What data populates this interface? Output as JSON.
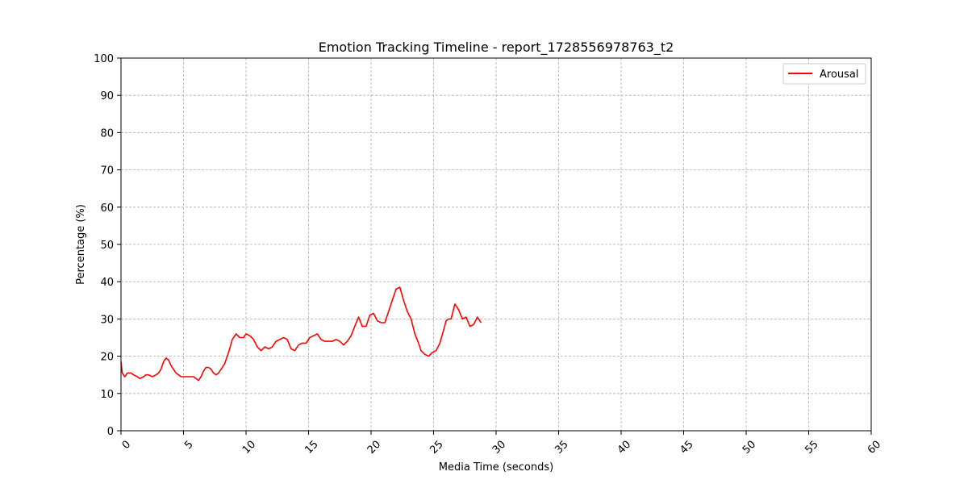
{
  "chart_data": {
    "type": "line",
    "title": "Emotion Tracking Timeline - report_1728556978763_t2",
    "xlabel": "Media Time (seconds)",
    "ylabel": "Percentage (%)",
    "xlim": [
      0,
      60
    ],
    "ylim": [
      0,
      100
    ],
    "xticks": [
      "0",
      "5",
      "10",
      "15",
      "20",
      "25",
      "30",
      "35",
      "40",
      "45",
      "50",
      "55",
      "60"
    ],
    "yticks": [
      "0",
      "10",
      "20",
      "30",
      "40",
      "50",
      "60",
      "70",
      "80",
      "90",
      "100"
    ],
    "grid": true,
    "legend_position": "top-right",
    "series": [
      {
        "name": "Arousal",
        "color": "#ff0000",
        "x": [
          0,
          0.1,
          0.3,
          0.5,
          0.8,
          1.0,
          1.3,
          1.5,
          1.8,
          2.0,
          2.2,
          2.5,
          2.8,
          3.0,
          3.2,
          3.4,
          3.6,
          3.8,
          4.0,
          4.2,
          4.4,
          4.6,
          4.8,
          5.0,
          5.3,
          5.6,
          5.8,
          6.0,
          6.2,
          6.4,
          6.6,
          6.8,
          7.0,
          7.2,
          7.4,
          7.6,
          7.8,
          8.0,
          8.3,
          8.6,
          8.9,
          9.2,
          9.5,
          9.8,
          10.0,
          10.3,
          10.6,
          10.9,
          11.2,
          11.5,
          11.8,
          12.1,
          12.4,
          12.7,
          13.0,
          13.3,
          13.6,
          13.9,
          14.2,
          14.5,
          14.8,
          15.1,
          15.4,
          15.7,
          16.0,
          16.3,
          16.6,
          16.9,
          17.2,
          17.5,
          17.8,
          18.1,
          18.4,
          18.7,
          19.0,
          19.3,
          19.6,
          19.9,
          20.2,
          20.5,
          20.8,
          21.1,
          21.4,
          21.7,
          22.0,
          22.3,
          22.6,
          22.9,
          23.2,
          23.5,
          23.8,
          24.0,
          24.3,
          24.6,
          24.9,
          25.2,
          25.5,
          25.8,
          26.0,
          26.2,
          26.4,
          26.7,
          27.0,
          27.3,
          27.6,
          27.9,
          28.2,
          28.5,
          28.8
        ],
        "values": [
          18.5,
          15.5,
          14.5,
          15.5,
          15.5,
          15.0,
          14.5,
          14.0,
          14.5,
          15.0,
          15.0,
          14.5,
          15.0,
          15.5,
          16.5,
          18.5,
          19.5,
          19.0,
          17.5,
          16.5,
          15.5,
          15.0,
          14.5,
          14.5,
          14.5,
          14.5,
          14.5,
          14.0,
          13.5,
          14.5,
          16.0,
          17.0,
          17.0,
          16.5,
          15.5,
          15.0,
          15.5,
          16.5,
          18.0,
          21.0,
          24.5,
          26.0,
          25.0,
          25.0,
          26.0,
          25.5,
          24.5,
          22.5,
          21.5,
          22.5,
          22.0,
          22.5,
          24.0,
          24.5,
          25.0,
          24.5,
          22.0,
          21.5,
          23.0,
          23.5,
          23.5,
          25.0,
          25.5,
          26.0,
          24.5,
          24.0,
          24.0,
          24.0,
          24.5,
          24.0,
          23.0,
          24.0,
          25.5,
          28.0,
          30.5,
          28.0,
          28.0,
          31.0,
          31.5,
          29.5,
          29.0,
          29.0,
          32.0,
          35.0,
          38.0,
          38.5,
          35.0,
          32.0,
          30.0,
          26.0,
          23.5,
          21.5,
          20.5,
          20.0,
          21.0,
          21.5,
          23.5,
          27.0,
          29.5,
          30.0,
          30.0,
          34.0,
          32.5,
          30.0,
          30.5,
          28.0,
          28.5,
          30.5,
          29.0
        ]
      }
    ]
  }
}
